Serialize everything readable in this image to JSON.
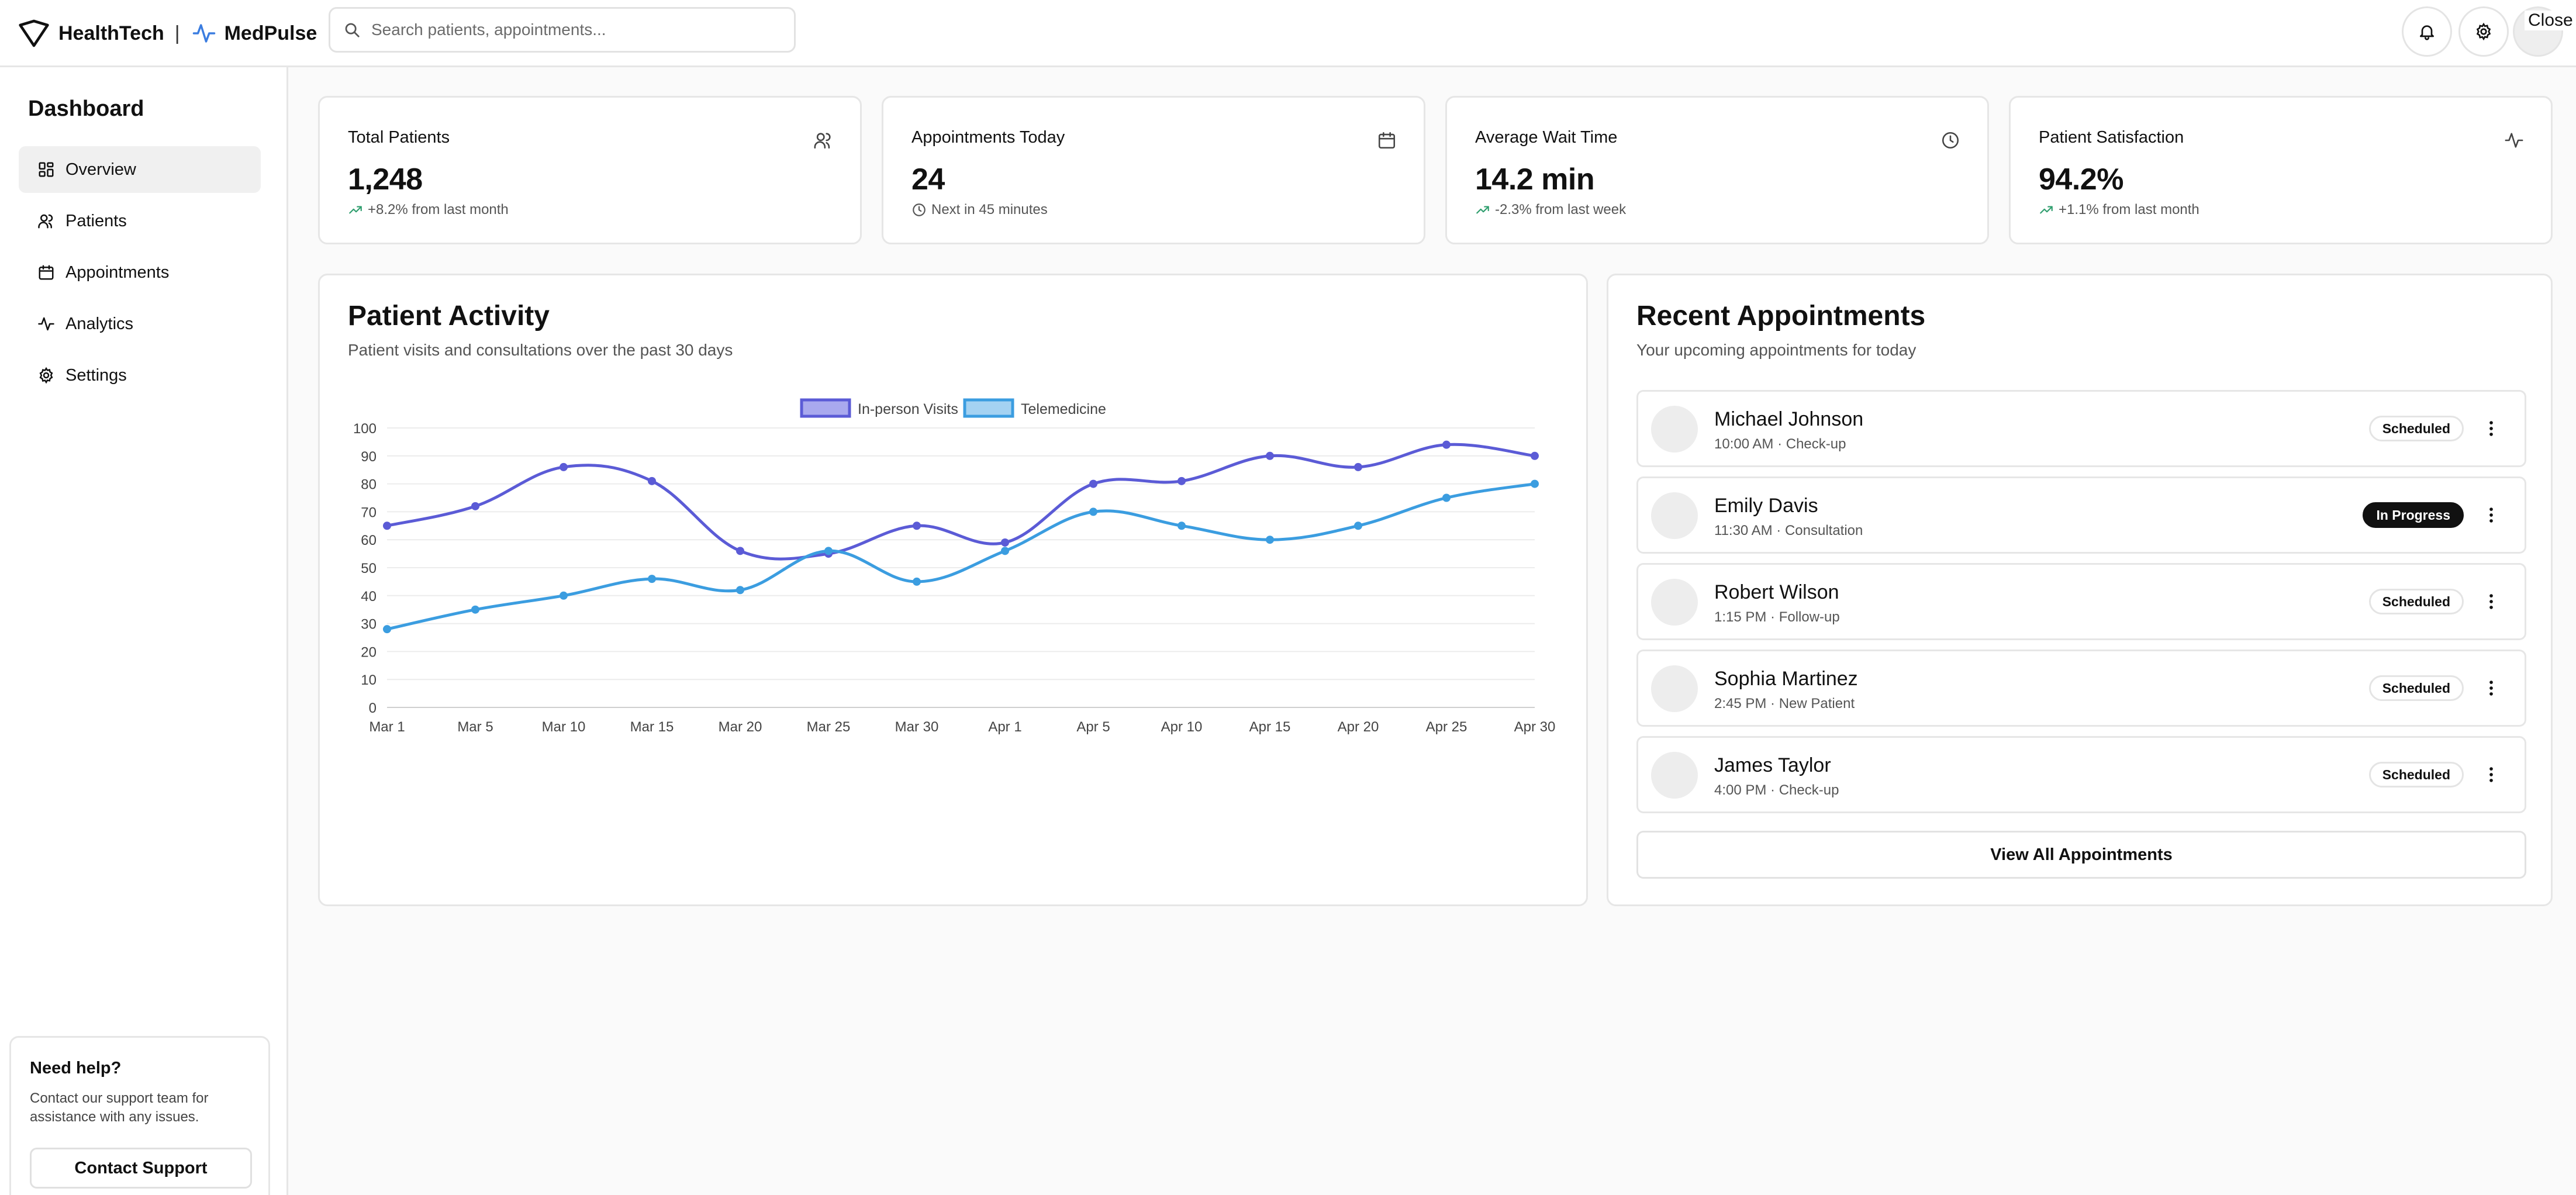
{
  "header": {
    "brand": "HealthTech",
    "separator": "|",
    "product": "MedPulse",
    "search_placeholder": "Search patients, appointments...",
    "close_label": "Close",
    "icons": [
      "shield-logo-icon",
      "pulse-icon",
      "search-icon",
      "bell-icon",
      "gear-icon"
    ]
  },
  "sidebar": {
    "title": "Dashboard",
    "items": [
      {
        "label": "Overview",
        "icon": "grid-icon",
        "active": true
      },
      {
        "label": "Patients",
        "icon": "users-icon",
        "active": false
      },
      {
        "label": "Appointments",
        "icon": "calendar-icon",
        "active": false
      },
      {
        "label": "Analytics",
        "icon": "activity-icon",
        "active": false
      },
      {
        "label": "Settings",
        "icon": "gear-icon",
        "active": false
      }
    ],
    "help": {
      "title": "Need help?",
      "text": "Contact our support team for assistance with any issues.",
      "button": "Contact Support"
    }
  },
  "stats": [
    {
      "label": "Total Patients",
      "value": "1,248",
      "sub": "+8.2% from last month",
      "icon": "users-icon",
      "sub_icon": "trend-up-icon"
    },
    {
      "label": "Appointments Today",
      "value": "24",
      "sub": "Next in 45 minutes",
      "icon": "calendar-icon",
      "sub_icon": "clock-icon"
    },
    {
      "label": "Average Wait Time",
      "value": "14.2 min",
      "sub": "-2.3% from last week",
      "icon": "clock-icon",
      "sub_icon": "trend-up-icon"
    },
    {
      "label": "Patient Satisfaction",
      "value": "94.2%",
      "sub": "+1.1% from last month",
      "icon": "activity-icon",
      "sub_icon": "trend-up-icon"
    }
  ],
  "activity": {
    "title": "Patient Activity",
    "description": "Patient visits and consultations over the past 30 days"
  },
  "chart_data": {
    "type": "line",
    "categories": [
      "Mar 1",
      "Mar 5",
      "Mar 10",
      "Mar 15",
      "Mar 20",
      "Mar 25",
      "Mar 30",
      "Apr 1",
      "Apr 5",
      "Apr 10",
      "Apr 15",
      "Apr 20",
      "Apr 25",
      "Apr 30"
    ],
    "series": [
      {
        "name": "In-person Visits",
        "color": "#5b5bd6",
        "fill": "#a9a9ee",
        "values": [
          65,
          72,
          86,
          81,
          56,
          55,
          65,
          59,
          80,
          81,
          90,
          86,
          94,
          90
        ]
      },
      {
        "name": "Telemedicine",
        "color": "#3b9de0",
        "fill": "#a4d2f2",
        "values": [
          28,
          35,
          40,
          46,
          42,
          56,
          45,
          56,
          70,
          65,
          60,
          65,
          75,
          80
        ]
      }
    ],
    "ylim": [
      0,
      100
    ],
    "yticks": [
      0,
      10,
      20,
      30,
      40,
      50,
      60,
      70,
      80,
      90,
      100
    ],
    "grid": true,
    "legend": "top-center"
  },
  "appointments": {
    "title": "Recent Appointments",
    "description": "Your upcoming appointments for today",
    "items": [
      {
        "name": "Michael Johnson",
        "meta": "10:00 AM · Check-up",
        "status": "Scheduled"
      },
      {
        "name": "Emily Davis",
        "meta": "11:30 AM · Consultation",
        "status": "In Progress"
      },
      {
        "name": "Robert Wilson",
        "meta": "1:15 PM · Follow-up",
        "status": "Scheduled"
      },
      {
        "name": "Sophia Martinez",
        "meta": "2:45 PM · New Patient",
        "status": "Scheduled"
      },
      {
        "name": "James Taylor",
        "meta": "4:00 PM · Check-up",
        "status": "Scheduled"
      }
    ],
    "view_all": "View All Appointments"
  }
}
